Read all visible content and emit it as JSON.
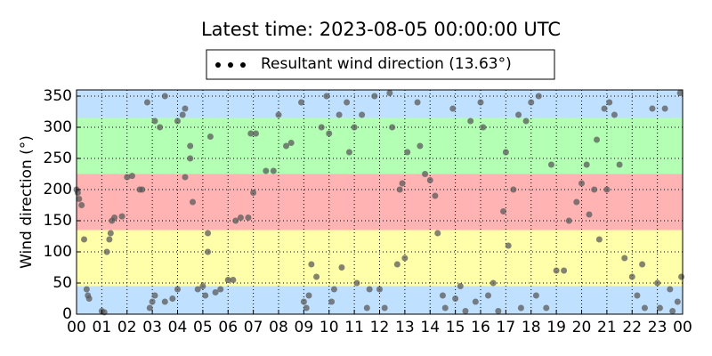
{
  "chart_data": {
    "type": "scatter",
    "title": "Latest time: 2023-08-05 00:00:00 UTC",
    "ylabel": "Wind direction (°)",
    "xlim": [
      0,
      24
    ],
    "ylim": [
      0,
      360
    ],
    "xticks": [
      {
        "value": 0,
        "label": "00"
      },
      {
        "value": 1,
        "label": "01"
      },
      {
        "value": 2,
        "label": "02"
      },
      {
        "value": 3,
        "label": "03"
      },
      {
        "value": 4,
        "label": "04"
      },
      {
        "value": 5,
        "label": "05"
      },
      {
        "value": 6,
        "label": "06"
      },
      {
        "value": 7,
        "label": "07"
      },
      {
        "value": 8,
        "label": "08"
      },
      {
        "value": 9,
        "label": "09"
      },
      {
        "value": 10,
        "label": "10"
      },
      {
        "value": 11,
        "label": "11"
      },
      {
        "value": 12,
        "label": "12"
      },
      {
        "value": 13,
        "label": "13"
      },
      {
        "value": 14,
        "label": "14"
      },
      {
        "value": 15,
        "label": "15"
      },
      {
        "value": 16,
        "label": "16"
      },
      {
        "value": 17,
        "label": "17"
      },
      {
        "value": 18,
        "label": "18"
      },
      {
        "value": 19,
        "label": "19"
      },
      {
        "value": 20,
        "label": "20"
      },
      {
        "value": 21,
        "label": "21"
      },
      {
        "value": 22,
        "label": "22"
      },
      {
        "value": 23,
        "label": "23"
      },
      {
        "value": 24,
        "label": "00"
      }
    ],
    "yticks": [
      0,
      50,
      100,
      150,
      200,
      250,
      300,
      350
    ],
    "grid": true,
    "bands": [
      {
        "from": 0,
        "to": 45,
        "color": "#bfe0ff"
      },
      {
        "from": 45,
        "to": 135,
        "color": "#ffffaa"
      },
      {
        "from": 135,
        "to": 225,
        "color": "#ffb3b3"
      },
      {
        "from": 225,
        "to": 315,
        "color": "#b3ffb3"
      },
      {
        "from": 315,
        "to": 360,
        "color": "#bfe0ff"
      }
    ],
    "legend_position": "top",
    "series": [
      {
        "name": "Resultant wind direction (13.63°)",
        "color": "#5a5a5a",
        "x": [
          0.0,
          0.05,
          0.1,
          0.2,
          0.3,
          0.4,
          0.5,
          0.45,
          1.0,
          1.1,
          1.2,
          1.3,
          1.35,
          1.4,
          1.5,
          1.8,
          2.0,
          2.2,
          2.5,
          2.6,
          2.9,
          3.0,
          3.1,
          2.8,
          3.1,
          3.3,
          3.5,
          3.5,
          3.8,
          4.0,
          4.2,
          4.3,
          4.0,
          4.3,
          4.5,
          4.5,
          4.6,
          4.8,
          5.0,
          5.1,
          5.2,
          5.2,
          5.3,
          5.5,
          5.7,
          6.0,
          6.2,
          6.3,
          6.5,
          6.8,
          6.9,
          7.1,
          7.0,
          7.5,
          7.8,
          8.0,
          8.3,
          8.5,
          8.9,
          9.0,
          9.1,
          9.2,
          9.3,
          9.5,
          9.7,
          9.9,
          10.0,
          10.1,
          10.2,
          10.4,
          10.5,
          10.7,
          10.8,
          11.0,
          11.1,
          11.3,
          11.5,
          11.6,
          11.8,
          12.0,
          12.2,
          12.4,
          12.5,
          12.7,
          12.8,
          12.9,
          13.0,
          13.1,
          13.5,
          13.6,
          13.8,
          14.0,
          14.2,
          14.3,
          14.5,
          14.6,
          14.9,
          15.0,
          15.2,
          15.4,
          15.6,
          15.8,
          16.0,
          16.1,
          16.3,
          16.5,
          16.7,
          16.9,
          17.0,
          17.1,
          17.3,
          17.5,
          17.6,
          17.8,
          18.0,
          18.2,
          18.3,
          18.6,
          18.8,
          19.0,
          19.3,
          19.5,
          19.8,
          20.0,
          20.2,
          20.3,
          20.5,
          20.6,
          20.7,
          20.9,
          21.0,
          21.1,
          21.3,
          21.5,
          21.7,
          22.0,
          22.2,
          22.4,
          22.5,
          22.8,
          23.0,
          23.1,
          23.3,
          23.5,
          23.6,
          23.8,
          23.9,
          23.95
        ],
        "values": [
          200,
          195,
          185,
          175,
          120,
          40,
          25,
          30,
          5,
          3,
          100,
          120,
          130,
          150,
          155,
          157,
          220,
          222,
          200,
          200,
          10,
          20,
          30,
          340,
          310,
          300,
          350,
          20,
          25,
          310,
          320,
          330,
          40,
          220,
          270,
          250,
          180,
          40,
          45,
          30,
          130,
          100,
          285,
          35,
          40,
          55,
          55,
          150,
          155,
          155,
          290,
          290,
          195,
          230,
          230,
          320,
          270,
          275,
          340,
          20,
          10,
          30,
          80,
          60,
          300,
          350,
          290,
          20,
          40,
          320,
          75,
          340,
          260,
          300,
          50,
          320,
          10,
          40,
          350,
          40,
          10,
          355,
          300,
          80,
          200,
          210,
          90,
          260,
          340,
          270,
          225,
          215,
          190,
          130,
          30,
          10,
          330,
          25,
          45,
          5,
          310,
          20,
          340,
          300,
          30,
          50,
          5,
          165,
          260,
          110,
          200,
          320,
          10,
          310,
          340,
          30,
          350,
          10,
          240,
          70,
          70,
          150,
          180,
          210,
          240,
          160,
          200,
          280,
          120,
          330,
          200,
          340,
          320,
          240,
          90,
          60,
          30,
          80,
          10,
          330,
          50,
          10,
          330,
          40,
          5,
          20,
          355,
          60
        ]
      }
    ]
  }
}
